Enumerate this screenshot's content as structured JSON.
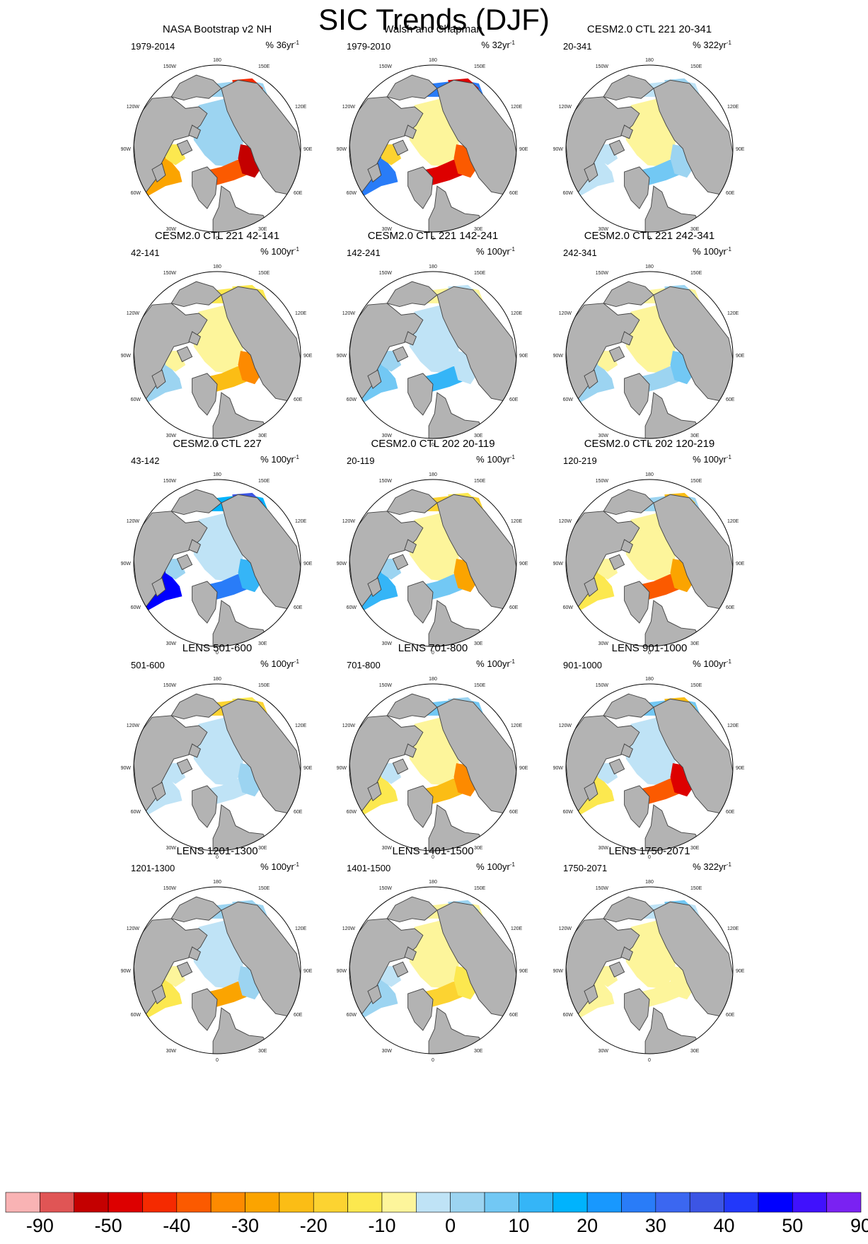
{
  "title": "SIC Trends (DJF)",
  "panels": [
    {
      "title": "NASA Bootstrap v2 NH",
      "period": "1979-2014",
      "unit_prefix": "% 36yr",
      "unit_sup": "-1",
      "pattern": "obs1"
    },
    {
      "title": "Walsh and Chapman",
      "period": "1979-2010",
      "unit_prefix": "% 32yr",
      "unit_sup": "-1",
      "pattern": "obs2"
    },
    {
      "title": "CESM2.0 CTL 221 20-341",
      "period": "20-341",
      "unit_prefix": "% 322yr",
      "unit_sup": "-1",
      "pattern": "weak_blue"
    },
    {
      "title": "CESM2.0 CTL 221 42-141",
      "period": "42-141",
      "unit_prefix": "% 100yr",
      "unit_sup": "-1",
      "pattern": "mixed_red"
    },
    {
      "title": "CESM2.0 CTL 221 142-241",
      "period": "142-241",
      "unit_prefix": "% 100yr",
      "unit_sup": "-1",
      "pattern": "blue_atl"
    },
    {
      "title": "CESM2.0 CTL 221 242-341",
      "period": "242-341",
      "unit_prefix": "% 100yr",
      "unit_sup": "-1",
      "pattern": "mixed_blue"
    },
    {
      "title": "CESM2.0 CTL 227",
      "period": "43-142",
      "unit_prefix": "% 100yr",
      "unit_sup": "-1",
      "pattern": "strong_blue"
    },
    {
      "title": "CESM2.0 CTL 202 20-119",
      "period": "20-119",
      "unit_prefix": "% 100yr",
      "unit_sup": "-1",
      "pattern": "mixed_blue_red"
    },
    {
      "title": "CESM2.0 CTL 202 120-219",
      "period": "120-219",
      "unit_prefix": "% 100yr",
      "unit_sup": "-1",
      "pattern": "yellow_red"
    },
    {
      "title": "LENS 501-600",
      "period": "501-600",
      "unit_prefix": "% 100yr",
      "unit_sup": "-1",
      "pattern": "lens_blue"
    },
    {
      "title": "LENS 701-800",
      "period": "701-800",
      "unit_prefix": "% 100yr",
      "unit_sup": "-1",
      "pattern": "lens_red"
    },
    {
      "title": "LENS 901-1000",
      "period": "901-1000",
      "unit_prefix": "% 100yr",
      "unit_sup": "-1",
      "pattern": "lens_strong_red"
    },
    {
      "title": "LENS 1201-1300",
      "period": "1201-1300",
      "unit_prefix": "% 100yr",
      "unit_sup": "-1",
      "pattern": "lens_orange"
    },
    {
      "title": "LENS 1401-1500",
      "period": "1401-1500",
      "unit_prefix": "% 100yr",
      "unit_sup": "-1",
      "pattern": "lens_mixed"
    },
    {
      "title": "LENS 1750-2071",
      "period": "1750-2071",
      "unit_prefix": "% 322yr",
      "unit_sup": "-1",
      "pattern": "lens_yellow"
    }
  ],
  "lon_labels": {
    "top": "180",
    "bottom": "0",
    "upper_left": "150W",
    "upper_right": "150E",
    "left_upper": "120W",
    "right_upper": "120E",
    "left_mid": "90W",
    "right_mid": "90E",
    "left_lower": "60W",
    "right_lower": "60E",
    "lower_left": "30W",
    "lower_right": "30E"
  },
  "colorbar": {
    "colors": [
      "#f9b3b4",
      "#e05555",
      "#c40000",
      "#dd0000",
      "#f52a00",
      "#fb5a00",
      "#fd8a00",
      "#fba400",
      "#fbbd15",
      "#fcd331",
      "#fce84f",
      "#fdf59b",
      "#bfe3f6",
      "#9cd4f1",
      "#72c8f4",
      "#35b5f7",
      "#00b3fd",
      "#1898fe",
      "#297cf8",
      "#3b67f1",
      "#3c55e4",
      "#2238fa",
      "#0000ff",
      "#4011fd",
      "#7a22f2"
    ],
    "labels": [
      "-90",
      "-50",
      "-40",
      "-30",
      "-20",
      "-10",
      "0",
      "10",
      "20",
      "30",
      "40",
      "50",
      "90"
    ]
  }
}
